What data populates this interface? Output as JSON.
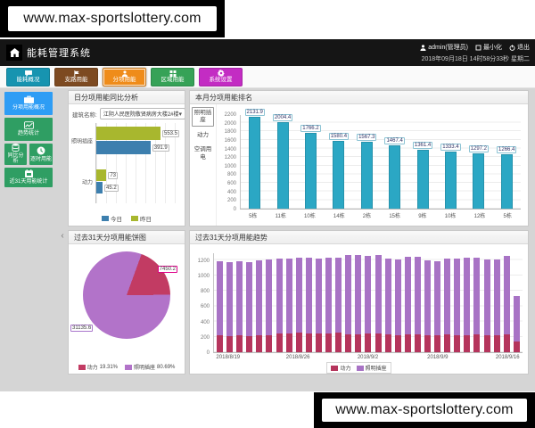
{
  "watermark": {
    "text": "www.max-sportslottery.com"
  },
  "header": {
    "title": "能耗管理系统",
    "user": "admin(管理员)",
    "minimize_label": "最小化",
    "logout_label": "退出",
    "datetime": "2018年09月18日 14时58分33秒 星期二"
  },
  "menu": {
    "items": [
      {
        "label": "能耗概况",
        "color": "#1794b0",
        "selected": false
      },
      {
        "label": "支路用能",
        "color": "#7d4a21",
        "selected": false
      },
      {
        "label": "分项用能",
        "color": "#ef8c1a",
        "selected": true
      },
      {
        "label": "区域用能",
        "color": "#36a257",
        "selected": false
      },
      {
        "label": "系统设置",
        "color": "#c32cc3",
        "selected": false
      }
    ]
  },
  "sidebar": {
    "collapse_arrow": "‹",
    "items": [
      {
        "label": "分项用能概况",
        "color": "#2e9df5",
        "selected": true
      },
      {
        "label": "趋势统计",
        "color": "#2f9e63",
        "selected": false
      },
      {
        "label": "同比分析",
        "color": "#2f9e63",
        "selected": false
      },
      {
        "label": "逐时用能",
        "color": "#2f9e63",
        "selected": false
      },
      {
        "label": "近31天用能统计",
        "color": "#2f9e63",
        "selected": false
      }
    ]
  },
  "panels": {
    "daily": {
      "building_label": "建筑名称:",
      "building_value": "江阴人民医院敬贤病房大楼2#楼",
      "dropdown_caret": "▾"
    }
  },
  "chart_data": [
    {
      "id": "daily_compare",
      "type": "bar",
      "orientation": "horizontal",
      "title": "日分项用能同比分析",
      "categories": [
        "照明插座",
        "动力"
      ],
      "series": [
        {
          "name": "今日",
          "color": "#3d7fae",
          "values": [
            391.9,
            45.2
          ]
        },
        {
          "name": "昨日",
          "color": "#a8b72e",
          "values": [
            553.5,
            73
          ]
        }
      ],
      "xlim": [
        0,
        600
      ],
      "grid": true,
      "legend_position": "bottom"
    },
    {
      "id": "monthly_ranking",
      "type": "bar",
      "title": "本月分项用能排名",
      "filters": [
        "照明插座",
        "动力",
        "空调用电"
      ],
      "selected_filter": "照明插座",
      "categories": [
        "5栋",
        "11栋",
        "10栋",
        "14栋",
        "2栋",
        "15栋",
        "9栋",
        "10栋",
        "12栋",
        "5栋"
      ],
      "values": [
        2131.9,
        2004.4,
        1766.2,
        1580.4,
        1567.3,
        1467.4,
        1361.4,
        1333.4,
        1297.2,
        1266.4
      ],
      "bar_color": "#2ba7c4",
      "ylim": [
        0,
        2200
      ],
      "ytick_step": 200,
      "grid": true
    },
    {
      "id": "pie_31days",
      "type": "pie",
      "title": "过去31天分项用能饼图",
      "start_angle_deg": 20,
      "slices": [
        {
          "name": "动力",
          "value": 7450.2,
          "pct": "19.31%",
          "color": "#c23b63"
        },
        {
          "name": "照明插座",
          "value": 31135.6,
          "pct": "80.69%",
          "color": "#b273c9"
        }
      ],
      "legend_position": "bottom"
    },
    {
      "id": "trend_31days",
      "type": "bar",
      "stacked": true,
      "title": "过去31天分项用能趋势",
      "ylim": [
        0,
        1300
      ],
      "ytick_max": 1200,
      "ytick_step": 200,
      "x_tick_labels": [
        "2018/8/19",
        "2018/8/26",
        "2018/9/2",
        "2018/9/9",
        "2018/9/16"
      ],
      "x_tick_bar_index": [
        1,
        8,
        15,
        22,
        29
      ],
      "series": [
        {
          "name": "动力",
          "color": "#b5345c",
          "values": [
            215,
            210,
            215,
            210,
            220,
            225,
            240,
            245,
            250,
            248,
            245,
            246,
            250,
            238,
            236,
            240,
            244,
            230,
            226,
            232,
            228,
            220,
            224,
            230,
            226,
            218,
            230,
            222,
            226,
            230,
            140
          ]
        },
        {
          "name": "照明插座",
          "color": "#a873c5",
          "values": [
            965,
            968,
            968,
            964,
            978,
            980,
            984,
            975,
            976,
            982,
            971,
            984,
            986,
            1026,
            1032,
            1016,
            1019,
            986,
            984,
            1012,
            1012,
            970,
            962,
            994,
            994,
            1008,
            1004,
            988,
            980,
            1020,
            590
          ]
        }
      ],
      "legend_position": "bottom"
    }
  ]
}
